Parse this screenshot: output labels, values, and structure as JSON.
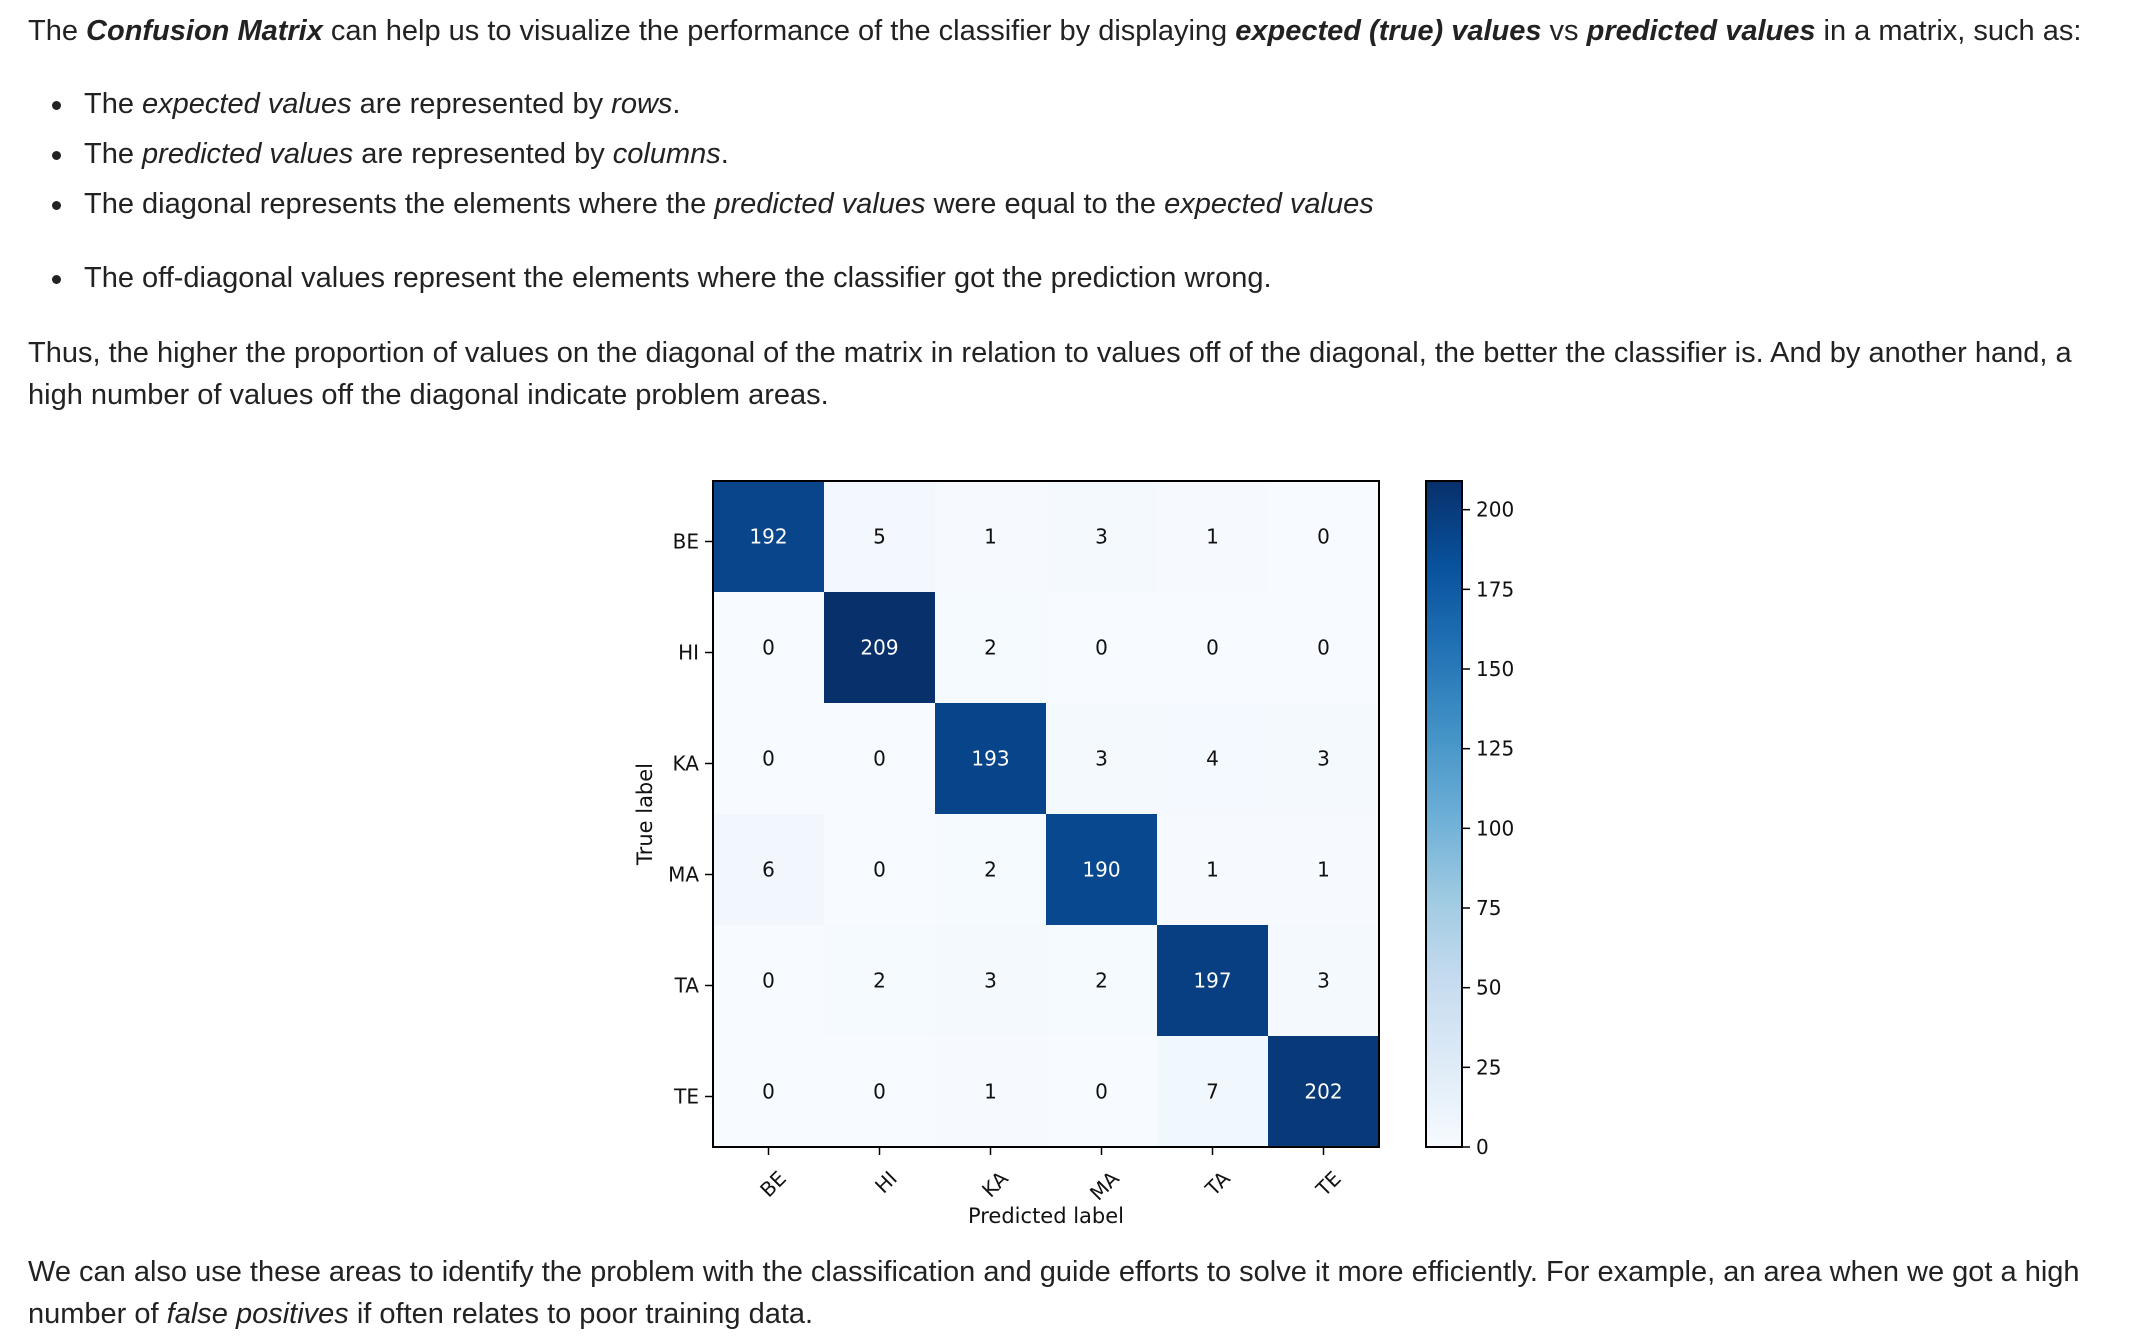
{
  "intro": {
    "t1": "The ",
    "term": "Confusion Matrix",
    "t2": " can help us to visualize the performance of the classifier by displaying ",
    "expected": "expected (true) values",
    "vs": " vs ",
    "predicted": "predicted values",
    "t3": " in a matrix, such as:"
  },
  "bullets": [
    {
      "a": "The ",
      "b": "expected values",
      "c": " are represented by ",
      "d": "rows",
      "e": "."
    },
    {
      "a": "The ",
      "b": "predicted values",
      "c": " are represented by ",
      "d": "columns",
      "e": "."
    },
    {
      "a": "The diagonal represents the elements where the ",
      "b": "predicted values",
      "c": " were equal to the ",
      "d": "expected values",
      "e": ""
    },
    {
      "a": "The off-diagonal values represent the elements where the classifier got the prediction wrong.",
      "b": "",
      "c": "",
      "d": "",
      "e": ""
    }
  ],
  "thus_text": "Thus, the higher the proportion of values on the diagonal of the matrix in relation to values off of the diagonal, the better the classifier is. And by another hand, a high number of values off the diagonal indicate problem areas.",
  "also": {
    "t1": "We can also use these areas to identify the problem with the classification and guide efforts to solve it more efficiently. For example, an area when we got a high number of ",
    "fp": "false positives",
    "t2": " if often relates to poor training data."
  },
  "chart_data": {
    "type": "heatmap",
    "title": "",
    "xlabel": "Predicted label",
    "ylabel": "True label",
    "x_categories": [
      "BE",
      "HI",
      "KA",
      "MA",
      "TA",
      "TE"
    ],
    "y_categories": [
      "BE",
      "HI",
      "KA",
      "MA",
      "TA",
      "TE"
    ],
    "values": [
      [
        192,
        5,
        1,
        3,
        1,
        0
      ],
      [
        0,
        209,
        2,
        0,
        0,
        0
      ],
      [
        0,
        0,
        193,
        3,
        4,
        3
      ],
      [
        6,
        0,
        2,
        190,
        1,
        1
      ],
      [
        0,
        2,
        3,
        2,
        197,
        3
      ],
      [
        0,
        0,
        1,
        0,
        7,
        202
      ]
    ],
    "colormap": "Blues",
    "color_range": [
      0,
      209
    ],
    "colorbar_ticks": [
      0,
      25,
      50,
      75,
      100,
      125,
      150,
      175,
      200
    ],
    "colors": {
      "low": "#f7fbff",
      "high": "#08306b"
    }
  }
}
